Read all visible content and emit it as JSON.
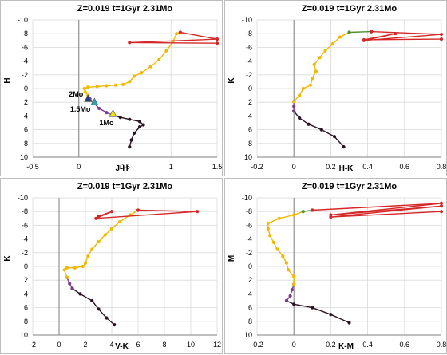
{
  "chart_data": [
    {
      "type": "line",
      "title": "Z=0.019   t=1Gyr   2.31Mo",
      "xlabel": "J-H",
      "ylabel": "H",
      "xlim": [
        -0.5,
        1.5
      ],
      "ylim": [
        10,
        -10
      ],
      "xticks": [
        "-0.5",
        "0",
        "0.5",
        "1",
        "1.5"
      ],
      "yticks": [
        "-10",
        "-8",
        "-6",
        "-4",
        "-2",
        "0",
        "2",
        "4",
        "6",
        "8",
        "10"
      ],
      "grid": true,
      "series": [
        {
          "color": "#2b1324",
          "points": [
            [
              0.55,
              8.5
            ],
            [
              0.57,
              7.5
            ],
            [
              0.6,
              6.5
            ],
            [
              0.66,
              5.6
            ],
            [
              0.7,
              5.3
            ],
            [
              0.66,
              4.8
            ],
            [
              0.55,
              4.5
            ],
            [
              0.45,
              4.2
            ],
            [
              0.37,
              3.9
            ]
          ]
        },
        {
          "color": "#7a3c8c",
          "points": [
            [
              0.37,
              3.9
            ],
            [
              0.3,
              3.5
            ],
            [
              0.22,
              2.9
            ],
            [
              0.17,
              2.2
            ],
            [
              0.12,
              1.5
            ],
            [
              0.1,
              1.0
            ]
          ]
        },
        {
          "color": "#f2b800",
          "points": [
            [
              0.1,
              1.0
            ],
            [
              0.07,
              0.5
            ],
            [
              0.06,
              0.0
            ],
            [
              0.1,
              -0.2
            ],
            [
              0.2,
              -0.3
            ],
            [
              0.3,
              -0.4
            ],
            [
              0.4,
              -0.5
            ],
            [
              0.48,
              -0.6
            ],
            [
              0.55,
              -1.0
            ],
            [
              0.6,
              -1.8
            ],
            [
              0.68,
              -2.3
            ],
            [
              0.78,
              -3.2
            ],
            [
              0.87,
              -4.2
            ],
            [
              0.95,
              -5.5
            ],
            [
              1.02,
              -6.8
            ],
            [
              1.06,
              -8.0
            ],
            [
              1.1,
              -8.2
            ]
          ]
        },
        {
          "color": "#d62728",
          "points": [
            [
              1.1,
              -8.2
            ],
            [
              1.5,
              -7.2
            ],
            [
              0.55,
              -6.7
            ],
            [
              1.5,
              -6.6
            ]
          ]
        }
      ],
      "markers": [
        {
          "label": "2Mo",
          "x": 0.1,
          "y": 1.5,
          "color": "#1f3e7a"
        },
        {
          "label": "1.5Mo",
          "x": 0.17,
          "y": 2.0,
          "color": "#2aa5a5"
        },
        {
          "label": "1Mo",
          "x": 0.37,
          "y": 3.7,
          "color": "#f2e600"
        }
      ]
    },
    {
      "type": "line",
      "title": "Z=0.019   t=1Gyr   2.31Mo",
      "xlabel": "H-K",
      "ylabel": "K",
      "xlim": [
        -0.2,
        0.8
      ],
      "ylim": [
        10,
        -10
      ],
      "xticks": [
        "-0.2",
        "0",
        "0.2",
        "0.4",
        "0.6",
        "0.8"
      ],
      "yticks": [
        "-10",
        "-8",
        "-6",
        "-4",
        "-2",
        "0",
        "2",
        "4",
        "6",
        "8",
        "10"
      ],
      "grid": true,
      "series": [
        {
          "color": "#2b1324",
          "points": [
            [
              0.27,
              8.5
            ],
            [
              0.22,
              7.0
            ],
            [
              0.15,
              6.0
            ],
            [
              0.08,
              5.2
            ],
            [
              0.03,
              4.3
            ],
            [
              0.0,
              3.3
            ]
          ]
        },
        {
          "color": "#7a3c8c",
          "points": [
            [
              0.0,
              3.3
            ],
            [
              0.0,
              2.6
            ],
            [
              0.0,
              1.9
            ]
          ]
        },
        {
          "color": "#f2b800",
          "points": [
            [
              0.0,
              1.9
            ],
            [
              0.03,
              1.0
            ],
            [
              0.05,
              0.0
            ],
            [
              0.09,
              -0.5
            ],
            [
              0.1,
              -1.5
            ],
            [
              0.12,
              -2.5
            ],
            [
              0.11,
              -3.5
            ],
            [
              0.14,
              -4.5
            ],
            [
              0.17,
              -5.5
            ],
            [
              0.21,
              -6.5
            ],
            [
              0.25,
              -7.5
            ],
            [
              0.3,
              -8.2
            ]
          ]
        },
        {
          "color": "#4f8f2f",
          "points": [
            [
              0.3,
              -8.2
            ],
            [
              0.42,
              -8.3
            ]
          ]
        },
        {
          "color": "#d62728",
          "points": [
            [
              0.42,
              -8.3
            ],
            [
              0.8,
              -7.9
            ],
            [
              0.38,
              -7.0
            ],
            [
              0.55,
              -8.0
            ],
            [
              0.38,
              -7.1
            ],
            [
              0.8,
              -7.2
            ]
          ]
        }
      ]
    },
    {
      "type": "line",
      "title": "Z=0.019   t=1Gyr   2.31Mo",
      "xlabel": "V-K",
      "ylabel": "K",
      "xlim": [
        -2,
        12
      ],
      "ylim": [
        10,
        -10
      ],
      "xticks": [
        "-2",
        "0",
        "2",
        "4",
        "6",
        "8",
        "10",
        "12"
      ],
      "yticks": [
        "-10",
        "-8",
        "-6",
        "-4",
        "-2",
        "0",
        "2",
        "4",
        "6",
        "8",
        "10"
      ],
      "grid": true,
      "series": [
        {
          "color": "#2b1324",
          "points": [
            [
              4.2,
              8.5
            ],
            [
              3.6,
              7.5
            ],
            [
              3.0,
              6.2
            ],
            [
              2.5,
              5.0
            ],
            [
              1.6,
              4.0
            ],
            [
              1.0,
              3.2
            ]
          ]
        },
        {
          "color": "#7a3c8c",
          "points": [
            [
              1.0,
              3.2
            ],
            [
              0.8,
              2.5
            ],
            [
              0.6,
              1.6
            ]
          ]
        },
        {
          "color": "#f2b800",
          "points": [
            [
              0.6,
              1.6
            ],
            [
              0.4,
              0.5
            ],
            [
              0.6,
              0.2
            ],
            [
              1.2,
              0.2
            ],
            [
              1.8,
              0.0
            ],
            [
              2.0,
              -0.5
            ],
            [
              2.2,
              -1.5
            ],
            [
              2.5,
              -2.5
            ],
            [
              3.0,
              -3.6
            ],
            [
              3.5,
              -4.6
            ],
            [
              4.0,
              -5.5
            ],
            [
              4.6,
              -6.5
            ],
            [
              5.4,
              -7.5
            ],
            [
              6.0,
              -8.2
            ]
          ]
        },
        {
          "color": "#d62728",
          "points": [
            [
              6.0,
              -8.2
            ],
            [
              10.5,
              -8.0
            ],
            [
              2.8,
              -7.0
            ],
            [
              4.0,
              -8.0
            ],
            [
              3.0,
              -7.3
            ]
          ]
        }
      ]
    },
    {
      "type": "line",
      "title": "Z=0.019   t=1Gyr   2.31Mo",
      "xlabel": "K-M",
      "ylabel": "M",
      "xlim": [
        -0.2,
        0.8
      ],
      "ylim": [
        10,
        -10
      ],
      "xticks": [
        "-0.2",
        "0",
        "0.2",
        "0.4",
        "0.6",
        "0.8"
      ],
      "yticks": [
        "-10",
        "-8",
        "-6",
        "-4",
        "-2",
        "0",
        "2",
        "4",
        "6",
        "8",
        "10"
      ],
      "grid": true,
      "series": [
        {
          "color": "#2b1324",
          "points": [
            [
              0.3,
              8.2
            ],
            [
              0.2,
              7.0
            ],
            [
              0.1,
              6.0
            ],
            [
              0.0,
              5.5
            ],
            [
              -0.04,
              5.0
            ]
          ]
        },
        {
          "color": "#7a3c8c",
          "points": [
            [
              -0.04,
              5.0
            ],
            [
              -0.02,
              4.3
            ],
            [
              -0.01,
              3.4
            ],
            [
              0.0,
              2.6
            ]
          ]
        },
        {
          "color": "#f2b800",
          "points": [
            [
              0.0,
              2.6
            ],
            [
              0.0,
              1.5
            ],
            [
              -0.03,
              0.5
            ],
            [
              -0.04,
              -0.5
            ],
            [
              -0.06,
              -1.5
            ],
            [
              -0.09,
              -2.5
            ],
            [
              -0.11,
              -3.5
            ],
            [
              -0.13,
              -4.5
            ],
            [
              -0.14,
              -5.5
            ],
            [
              -0.14,
              -6.3
            ],
            [
              -0.08,
              -7.0
            ],
            [
              0.0,
              -7.5
            ],
            [
              0.05,
              -8.0
            ]
          ]
        },
        {
          "color": "#4f8f2f",
          "points": [
            [
              0.05,
              -8.0
            ],
            [
              0.1,
              -8.2
            ]
          ]
        },
        {
          "color": "#d62728",
          "points": [
            [
              0.1,
              -8.2
            ],
            [
              0.8,
              -9.2
            ],
            [
              0.2,
              -7.5
            ],
            [
              0.8,
              -8.8
            ],
            [
              0.2,
              -7.2
            ],
            [
              0.8,
              -8.0
            ]
          ]
        }
      ]
    }
  ]
}
